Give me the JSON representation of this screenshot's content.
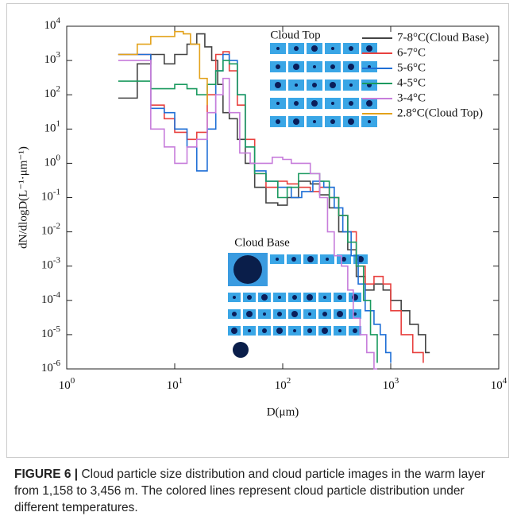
{
  "chart_data": {
    "type": "line",
    "step": "post",
    "log_x": true,
    "log_y": true,
    "xlabel": "D(μm)",
    "ylabel": "dN/dlogD(L⁻¹·μm⁻¹)",
    "xlim": [
      1,
      10000
    ],
    "ylim": [
      1e-06,
      10000
    ],
    "xticks": [
      {
        "value": 1,
        "label": "10^0"
      },
      {
        "value": 10,
        "label": "10^1"
      },
      {
        "value": 100,
        "label": "10^2"
      },
      {
        "value": 1000,
        "label": "10^3"
      },
      {
        "value": 10000,
        "label": "10^4"
      }
    ],
    "yticks": [
      {
        "value": 1e-06,
        "label": "10^-6"
      },
      {
        "value": 1e-05,
        "label": "10^-5"
      },
      {
        "value": 0.0001,
        "label": "10^-4"
      },
      {
        "value": 0.001,
        "label": "10^-3"
      },
      {
        "value": 0.01,
        "label": "10^-2"
      },
      {
        "value": 0.1,
        "label": "10^-1"
      },
      {
        "value": 1,
        "label": "10^0"
      },
      {
        "value": 10,
        "label": "10^1"
      },
      {
        "value": 100,
        "label": "10^2"
      },
      {
        "value": 1000,
        "label": "10^3"
      },
      {
        "value": 10000,
        "label": "10^4"
      }
    ],
    "annotations": [
      "Cloud Top",
      "Cloud Base"
    ],
    "series": [
      {
        "name": "7-8°C(Cloud Base)",
        "color": "#444444",
        "x": [
          3,
          4.5,
          6,
          8,
          10,
          13,
          16,
          19,
          22,
          25,
          28,
          32,
          38,
          45,
          55,
          70,
          90,
          110,
          140,
          180,
          220,
          270,
          330,
          400,
          480,
          580,
          700,
          850,
          1000,
          1250,
          1500,
          1800,
          2100,
          2300
        ],
        "values": [
          80,
          800,
          1500,
          800,
          1500,
          3000,
          6000,
          2500,
          1000,
          200,
          30,
          20,
          5,
          1,
          0.2,
          0.07,
          0.06,
          0.1,
          0.3,
          0.25,
          0.12,
          0.05,
          0.01,
          0.003,
          0.0005,
          0.0002,
          0.0003,
          0.0002,
          0.0001,
          5e-05,
          2e-05,
          1e-05,
          3e-06,
          3e-06
        ]
      },
      {
        "name": "6-7°C",
        "color": "#e8413f",
        "x": [
          3,
          4.5,
          6,
          8,
          10,
          13,
          16,
          20,
          24,
          28,
          32,
          38,
          45,
          55,
          70,
          90,
          110,
          140,
          180,
          220,
          270,
          330,
          400,
          480,
          580,
          700,
          850,
          1000,
          1250,
          1600,
          2000
        ],
        "values": [
          1500,
          1500,
          50,
          20,
          8,
          5,
          8,
          100,
          1500,
          1800,
          500,
          50,
          5,
          0.5,
          0.2,
          0.3,
          0.25,
          0.2,
          0.15,
          0.2,
          0.1,
          0.03,
          0.01,
          0.001,
          0.0003,
          0.0005,
          0.0003,
          5e-05,
          1e-05,
          3e-06,
          1.5e-06
        ]
      },
      {
        "name": "5-6°C",
        "color": "#1f6fd6",
        "x": [
          3,
          4.5,
          6,
          8,
          10,
          13,
          16,
          20,
          24,
          28,
          32,
          38,
          45,
          55,
          70,
          90,
          120,
          150,
          190,
          240,
          300,
          360,
          430,
          500,
          580,
          700,
          800,
          900,
          1000
        ],
        "values": [
          1500,
          1500,
          40,
          30,
          10,
          3,
          0.6,
          10,
          500,
          1500,
          1000,
          100,
          3,
          0.6,
          0.3,
          0.2,
          0.1,
          0.15,
          0.3,
          0.2,
          0.05,
          0.01,
          0.002,
          0.0003,
          5e-05,
          2e-05,
          1e-05,
          3e-06,
          1.5e-06
        ]
      },
      {
        "name": "4-5°C",
        "color": "#1a9a5f",
        "x": [
          3,
          4.5,
          6,
          8,
          10,
          13,
          16,
          20,
          24,
          28,
          32,
          38,
          45,
          55,
          70,
          90,
          110,
          140,
          180,
          220,
          270,
          330,
          400,
          480,
          560,
          650,
          750
        ],
        "values": [
          250,
          250,
          150,
          150,
          200,
          150,
          100,
          200,
          500,
          1000,
          800,
          100,
          3,
          0.5,
          0.3,
          0.1,
          0.2,
          0.5,
          0.5,
          0.3,
          0.1,
          0.03,
          0.005,
          0.001,
          0.0001,
          1e-05,
          1.5e-06
        ]
      },
      {
        "name": "3-4°C",
        "color": "#c77ddb",
        "x": [
          3,
          4.5,
          6,
          8,
          10,
          13,
          16,
          20,
          24,
          28,
          32,
          40,
          50,
          65,
          80,
          100,
          120,
          150,
          180,
          220,
          260,
          300,
          350,
          400,
          450,
          520,
          600,
          700,
          750
        ],
        "values": [
          1000,
          1000,
          10,
          3,
          1,
          3,
          5,
          30,
          100,
          300,
          30,
          2,
          1,
          1,
          1.5,
          1.3,
          1,
          1,
          0.5,
          0.1,
          0.01,
          0.002,
          0.001,
          0.0002,
          3e-05,
          1e-05,
          3e-06,
          1e-06,
          1e-06
        ]
      },
      {
        "name": "2.8°C(Cloud Top)",
        "color": "#e3a21a",
        "x": [
          3,
          4.5,
          6,
          8,
          10,
          12,
          14,
          17,
          20
        ],
        "values": [
          1500,
          3000,
          5000,
          5000,
          7000,
          6000,
          3000,
          300,
          50
        ]
      }
    ]
  },
  "caption": {
    "label": "FIGURE 6 |",
    "text": "Cloud particle size distribution and cloud particle images in the warm layer from 1,158 to 3,456 m. The colored lines represent cloud particle distribution under different temperatures."
  }
}
